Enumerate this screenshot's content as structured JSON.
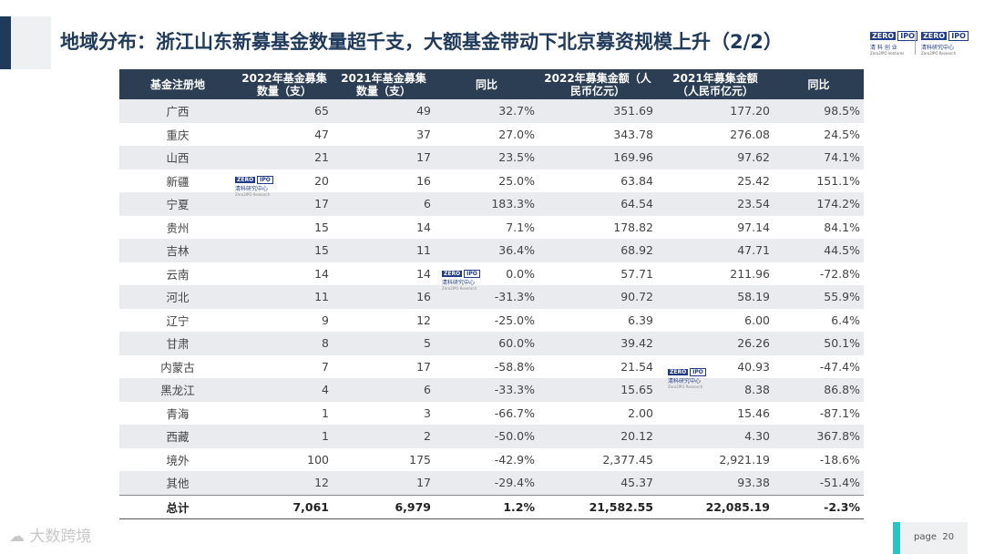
{
  "title": "地域分布：浙江山东新募基金数量超千支，大额基金带动下北京募资规模上升（2/2）",
  "logos": [
    {
      "zero": "ZERO",
      "ipo": "IPO",
      "sub": "清 科 创 业",
      "sub2": "Zero2IPO Ventures"
    },
    {
      "zero": "ZERO",
      "ipo": "IPO",
      "sub": "清科研究中心",
      "sub2": "Zero2IPO Research"
    }
  ],
  "watermark": {
    "zero": "ZERO",
    "ipo": "IPO",
    "sub": "清科研究中心",
    "sub2": "Zero2IPO Research"
  },
  "table": {
    "headers": [
      "基金注册地",
      "2022年基金募集数量（支）",
      "2021年基金募集数量（支）",
      "同比",
      "2022年募集金额（人民币亿元）",
      "2021年募集金额（人民币亿元）",
      "同比"
    ],
    "rows": [
      [
        "广西",
        "65",
        "49",
        "32.7%",
        "351.69",
        "177.20",
        "98.5%"
      ],
      [
        "重庆",
        "47",
        "37",
        "27.0%",
        "343.78",
        "276.08",
        "24.5%"
      ],
      [
        "山西",
        "21",
        "17",
        "23.5%",
        "169.96",
        "97.62",
        "74.1%"
      ],
      [
        "新疆",
        "20",
        "16",
        "25.0%",
        "63.84",
        "25.42",
        "151.1%"
      ],
      [
        "宁夏",
        "17",
        "6",
        "183.3%",
        "64.54",
        "23.54",
        "174.2%"
      ],
      [
        "贵州",
        "15",
        "14",
        "7.1%",
        "178.82",
        "97.14",
        "84.1%"
      ],
      [
        "吉林",
        "15",
        "11",
        "36.4%",
        "68.92",
        "47.71",
        "44.5%"
      ],
      [
        "云南",
        "14",
        "14",
        "0.0%",
        "57.71",
        "211.96",
        "-72.8%"
      ],
      [
        "河北",
        "11",
        "16",
        "-31.3%",
        "90.72",
        "58.19",
        "55.9%"
      ],
      [
        "辽宁",
        "9",
        "12",
        "-25.0%",
        "6.39",
        "6.00",
        "6.4%"
      ],
      [
        "甘肃",
        "8",
        "5",
        "60.0%",
        "39.42",
        "26.26",
        "50.1%"
      ],
      [
        "内蒙古",
        "7",
        "17",
        "-58.8%",
        "21.54",
        "40.93",
        "-47.4%"
      ],
      [
        "黑龙江",
        "4",
        "6",
        "-33.3%",
        "15.65",
        "8.38",
        "86.8%"
      ],
      [
        "青海",
        "1",
        "3",
        "-66.7%",
        "2.00",
        "15.46",
        "-87.1%"
      ],
      [
        "西藏",
        "1",
        "2",
        "-50.0%",
        "20.12",
        "4.30",
        "367.8%"
      ],
      [
        "境外",
        "100",
        "175",
        "-42.9%",
        "2,377.45",
        "2,921.19",
        "-18.6%"
      ],
      [
        "其他",
        "12",
        "17",
        "-29.4%",
        "45.37",
        "93.38",
        "-51.4%"
      ]
    ],
    "total": [
      "总计",
      "7,061",
      "6,979",
      "1.2%",
      "21,582.55",
      "22,085.19",
      "-2.3%"
    ]
  },
  "brand": "大数跨境",
  "page_label": "page",
  "page_number": "20"
}
